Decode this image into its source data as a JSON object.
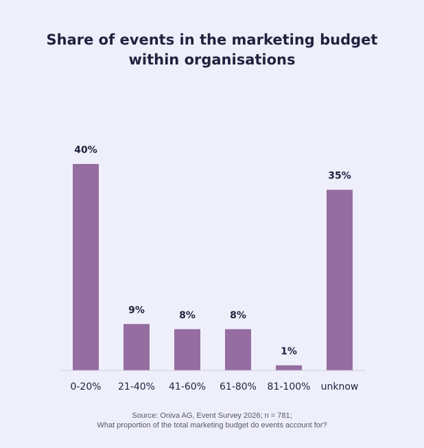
{
  "chart_data": {
    "type": "bar",
    "title_lines": [
      "Share of events in the marketing budget",
      "within organisations"
    ],
    "categories": [
      "0-20%",
      "21-40%",
      "41-60%",
      "61-80%",
      "81-100%",
      "unknow"
    ],
    "values": [
      40,
      9,
      8,
      8,
      1,
      35
    ],
    "value_labels": [
      "40%",
      "9%",
      "8%",
      "8%",
      "1%",
      "35%"
    ],
    "ylim": [
      0,
      40
    ],
    "grid": false,
    "bar_color": "#956da0"
  },
  "footer": {
    "source": "Source: Oniva AG, Event Survey 2026; n = 781;",
    "question": "What proportion of the total marketing budget do events account for?"
  },
  "colors": {
    "background": "#efeffb",
    "title": "#22223f",
    "text": "#22223f"
  }
}
